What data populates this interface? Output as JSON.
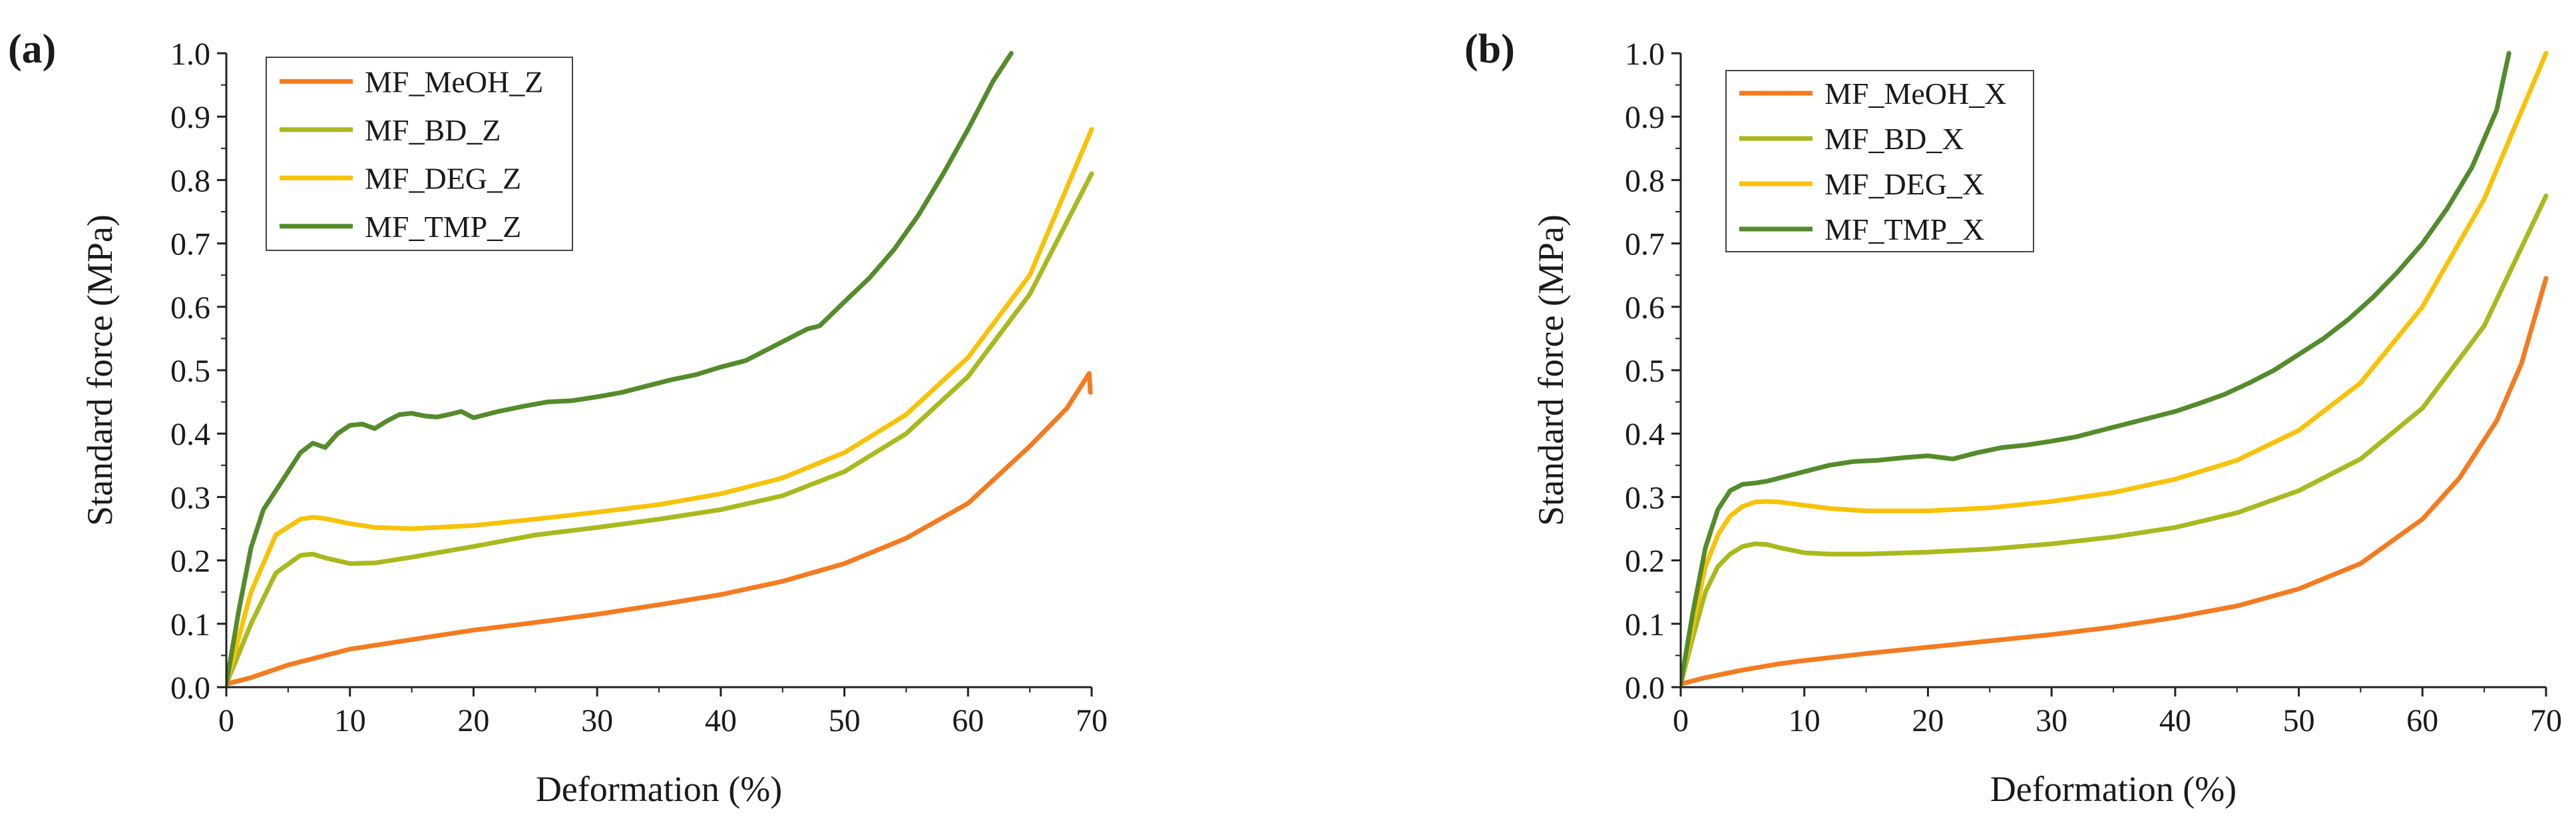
{
  "chart_data": [
    {
      "id": "a",
      "panel_label": "(a)",
      "type": "line",
      "xlabel": "Deformation (%)",
      "ylabel": "Standard force (MPa)",
      "xlim": [
        0,
        70
      ],
      "ylim": [
        0,
        1.0
      ],
      "xticks": [
        0,
        10,
        20,
        30,
        40,
        50,
        60,
        70
      ],
      "yticks": [
        0.0,
        0.1,
        0.2,
        0.3,
        0.4,
        0.5,
        0.6,
        0.7,
        0.8,
        0.9,
        1.0
      ],
      "xtick_labels": [
        "0",
        "10",
        "20",
        "30",
        "40",
        "50",
        "60",
        "70"
      ],
      "ytick_labels": [
        "0.0",
        "0.1",
        "0.2",
        "0.3",
        "0.4",
        "0.5",
        "0.6",
        "0.7",
        "0.8",
        "0.9",
        "1.0"
      ],
      "legend_position": "top-left",
      "series": [
        {
          "name": "MF_MeOH_Z",
          "color": "#f47b20",
          "x": [
            0,
            2,
            5,
            8,
            10,
            15,
            20,
            25,
            30,
            35,
            40,
            45,
            50,
            55,
            60,
            65,
            68,
            69.8,
            69.9
          ],
          "y": [
            0.005,
            0.015,
            0.035,
            0.05,
            0.06,
            0.075,
            0.09,
            0.102,
            0.115,
            0.13,
            0.146,
            0.167,
            0.195,
            0.235,
            0.29,
            0.38,
            0.44,
            0.495,
            0.465
          ]
        },
        {
          "name": "MF_BD_Z",
          "color": "#a9b91e",
          "x": [
            0,
            2,
            4,
            6,
            7,
            8,
            10,
            12,
            15,
            20,
            25,
            30,
            35,
            40,
            45,
            50,
            55,
            60,
            65,
            70
          ],
          "y": [
            0.005,
            0.1,
            0.18,
            0.208,
            0.21,
            0.204,
            0.195,
            0.196,
            0.205,
            0.222,
            0.24,
            0.252,
            0.265,
            0.28,
            0.302,
            0.34,
            0.4,
            0.49,
            0.62,
            0.81
          ]
        },
        {
          "name": "MF_DEG_Z",
          "color": "#f8c208",
          "x": [
            0,
            2,
            4,
            6,
            7,
            8,
            10,
            12,
            15,
            20,
            25,
            30,
            35,
            40,
            45,
            50,
            55,
            60,
            65,
            70
          ],
          "y": [
            0.005,
            0.15,
            0.24,
            0.265,
            0.268,
            0.266,
            0.258,
            0.252,
            0.25,
            0.255,
            0.265,
            0.276,
            0.288,
            0.305,
            0.33,
            0.37,
            0.43,
            0.52,
            0.65,
            0.88
          ]
        },
        {
          "name": "MF_TMP_Z",
          "color": "#548b2b",
          "x": [
            0,
            1,
            2,
            3,
            4,
            5,
            6,
            7,
            8,
            9,
            10,
            11,
            12,
            13,
            14,
            15,
            16,
            17,
            18,
            19,
            20,
            22,
            24,
            26,
            28,
            30,
            32,
            34,
            36,
            38,
            40,
            42,
            44,
            46,
            47,
            48,
            50,
            52,
            54,
            56,
            58,
            60,
            62,
            63.5
          ],
          "y": [
            0.005,
            0.12,
            0.22,
            0.28,
            0.31,
            0.34,
            0.37,
            0.385,
            0.378,
            0.4,
            0.413,
            0.415,
            0.408,
            0.42,
            0.43,
            0.432,
            0.428,
            0.426,
            0.43,
            0.435,
            0.425,
            0.435,
            0.443,
            0.45,
            0.452,
            0.458,
            0.465,
            0.475,
            0.485,
            0.493,
            0.505,
            0.515,
            0.535,
            0.555,
            0.565,
            0.57,
            0.608,
            0.645,
            0.69,
            0.745,
            0.81,
            0.88,
            0.955,
            1.0
          ]
        }
      ]
    },
    {
      "id": "b",
      "panel_label": "(b)",
      "type": "line",
      "xlabel": "Deformation (%)",
      "ylabel": "Standard force (MPa)",
      "xlim": [
        0,
        70
      ],
      "ylim": [
        0,
        1.0
      ],
      "xticks": [
        0,
        10,
        20,
        30,
        40,
        50,
        60,
        70
      ],
      "yticks": [
        0.0,
        0.1,
        0.2,
        0.3,
        0.4,
        0.5,
        0.6,
        0.7,
        0.8,
        0.9,
        1.0
      ],
      "xtick_labels": [
        "0",
        "10",
        "20",
        "30",
        "40",
        "50",
        "60",
        "70"
      ],
      "ytick_labels": [
        "0.0",
        "0.1",
        "0.2",
        "0.3",
        "0.4",
        "0.5",
        "0.6",
        "0.7",
        "0.8",
        "0.9",
        "1.0"
      ],
      "legend_position": "top-left",
      "series": [
        {
          "name": "MF_MeOH_X",
          "color": "#f47b20",
          "x": [
            0,
            2,
            5,
            8,
            10,
            15,
            20,
            25,
            30,
            35,
            40,
            45,
            50,
            55,
            60,
            63,
            66,
            68,
            70
          ],
          "y": [
            0.005,
            0.015,
            0.027,
            0.037,
            0.042,
            0.053,
            0.063,
            0.073,
            0.083,
            0.095,
            0.11,
            0.128,
            0.155,
            0.195,
            0.265,
            0.33,
            0.42,
            0.51,
            0.645
          ]
        },
        {
          "name": "MF_BD_X",
          "color": "#a9b91e",
          "x": [
            0,
            1,
            2,
            3,
            4,
            5,
            6,
            7,
            8,
            10,
            12,
            15,
            20,
            25,
            30,
            35,
            40,
            45,
            50,
            55,
            60,
            65,
            70
          ],
          "y": [
            0.005,
            0.08,
            0.15,
            0.19,
            0.21,
            0.222,
            0.226,
            0.225,
            0.22,
            0.212,
            0.21,
            0.21,
            0.213,
            0.218,
            0.226,
            0.237,
            0.252,
            0.275,
            0.31,
            0.36,
            0.44,
            0.57,
            0.775
          ]
        },
        {
          "name": "MF_DEG_X",
          "color": "#f8c208",
          "x": [
            0,
            1,
            2,
            3,
            4,
            5,
            6,
            7,
            8,
            10,
            12,
            15,
            20,
            25,
            30,
            35,
            40,
            45,
            50,
            55,
            60,
            65,
            70
          ],
          "y": [
            0.005,
            0.1,
            0.19,
            0.24,
            0.27,
            0.285,
            0.292,
            0.293,
            0.292,
            0.287,
            0.282,
            0.278,
            0.278,
            0.283,
            0.293,
            0.307,
            0.328,
            0.358,
            0.405,
            0.48,
            0.6,
            0.77,
            1.0
          ]
        },
        {
          "name": "MF_TMP_X",
          "color": "#548b2b",
          "x": [
            0,
            1,
            2,
            3,
            4,
            5,
            6,
            7,
            8,
            9,
            10,
            12,
            14,
            16,
            18,
            20,
            22,
            24,
            26,
            28,
            30,
            32,
            34,
            36,
            38,
            40,
            42,
            44,
            46,
            48,
            50,
            52,
            54,
            56,
            58,
            60,
            62,
            64,
            66,
            67
          ],
          "y": [
            0.005,
            0.12,
            0.22,
            0.28,
            0.31,
            0.32,
            0.322,
            0.325,
            0.33,
            0.335,
            0.34,
            0.35,
            0.356,
            0.358,
            0.362,
            0.365,
            0.36,
            0.37,
            0.378,
            0.382,
            0.388,
            0.395,
            0.405,
            0.415,
            0.425,
            0.435,
            0.448,
            0.462,
            0.48,
            0.5,
            0.525,
            0.55,
            0.58,
            0.615,
            0.655,
            0.7,
            0.755,
            0.82,
            0.91,
            1.0
          ]
        }
      ]
    }
  ]
}
